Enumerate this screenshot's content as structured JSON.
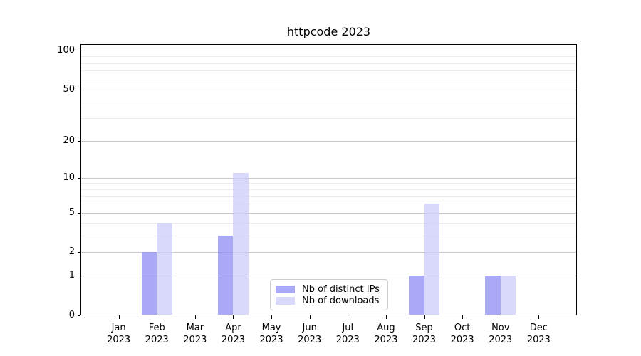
{
  "figure": {
    "background": "#ffffff"
  },
  "chart_data": {
    "type": "bar",
    "title": "httpcode 2023",
    "categories": [
      {
        "month": "Jan",
        "year": "2023"
      },
      {
        "month": "Feb",
        "year": "2023"
      },
      {
        "month": "Mar",
        "year": "2023"
      },
      {
        "month": "Apr",
        "year": "2023"
      },
      {
        "month": "May",
        "year": "2023"
      },
      {
        "month": "Jun",
        "year": "2023"
      },
      {
        "month": "Jul",
        "year": "2023"
      },
      {
        "month": "Aug",
        "year": "2023"
      },
      {
        "month": "Sep",
        "year": "2023"
      },
      {
        "month": "Oct",
        "year": "2023"
      },
      {
        "month": "Nov",
        "year": "2023"
      },
      {
        "month": "Dec",
        "year": "2023"
      }
    ],
    "series": [
      {
        "name": "Nb of distinct IPs",
        "color": "rgba(145,145,243,0.78)",
        "values": [
          0,
          2,
          0,
          3,
          0,
          0,
          0,
          0,
          1,
          0,
          1,
          0
        ]
      },
      {
        "name": "Nb of downloads",
        "color": "rgba(206,206,250,0.78)",
        "values": [
          0,
          4,
          0,
          11,
          0,
          0,
          0,
          0,
          6,
          0,
          1,
          0
        ]
      }
    ],
    "xlabel": "",
    "ylabel": "",
    "yscale": "log1p",
    "ylim": [
      0,
      112
    ],
    "y_major_ticks": [
      0,
      1,
      2,
      5,
      10,
      20,
      50,
      100
    ],
    "y_minor_ticks": [
      3,
      4,
      6,
      7,
      8,
      9,
      30,
      40,
      60,
      70,
      80,
      90
    ],
    "grid": true,
    "legend_position": "lower center"
  },
  "colors": {
    "bar_distinct_ips": "rgba(145,145,243,0.78)",
    "bar_downloads": "rgba(206,206,250,0.78)",
    "grid_major": "#c6c6c6",
    "grid_minor": "#ececec",
    "axis": "#000000",
    "legend_border": "#cccccc"
  }
}
